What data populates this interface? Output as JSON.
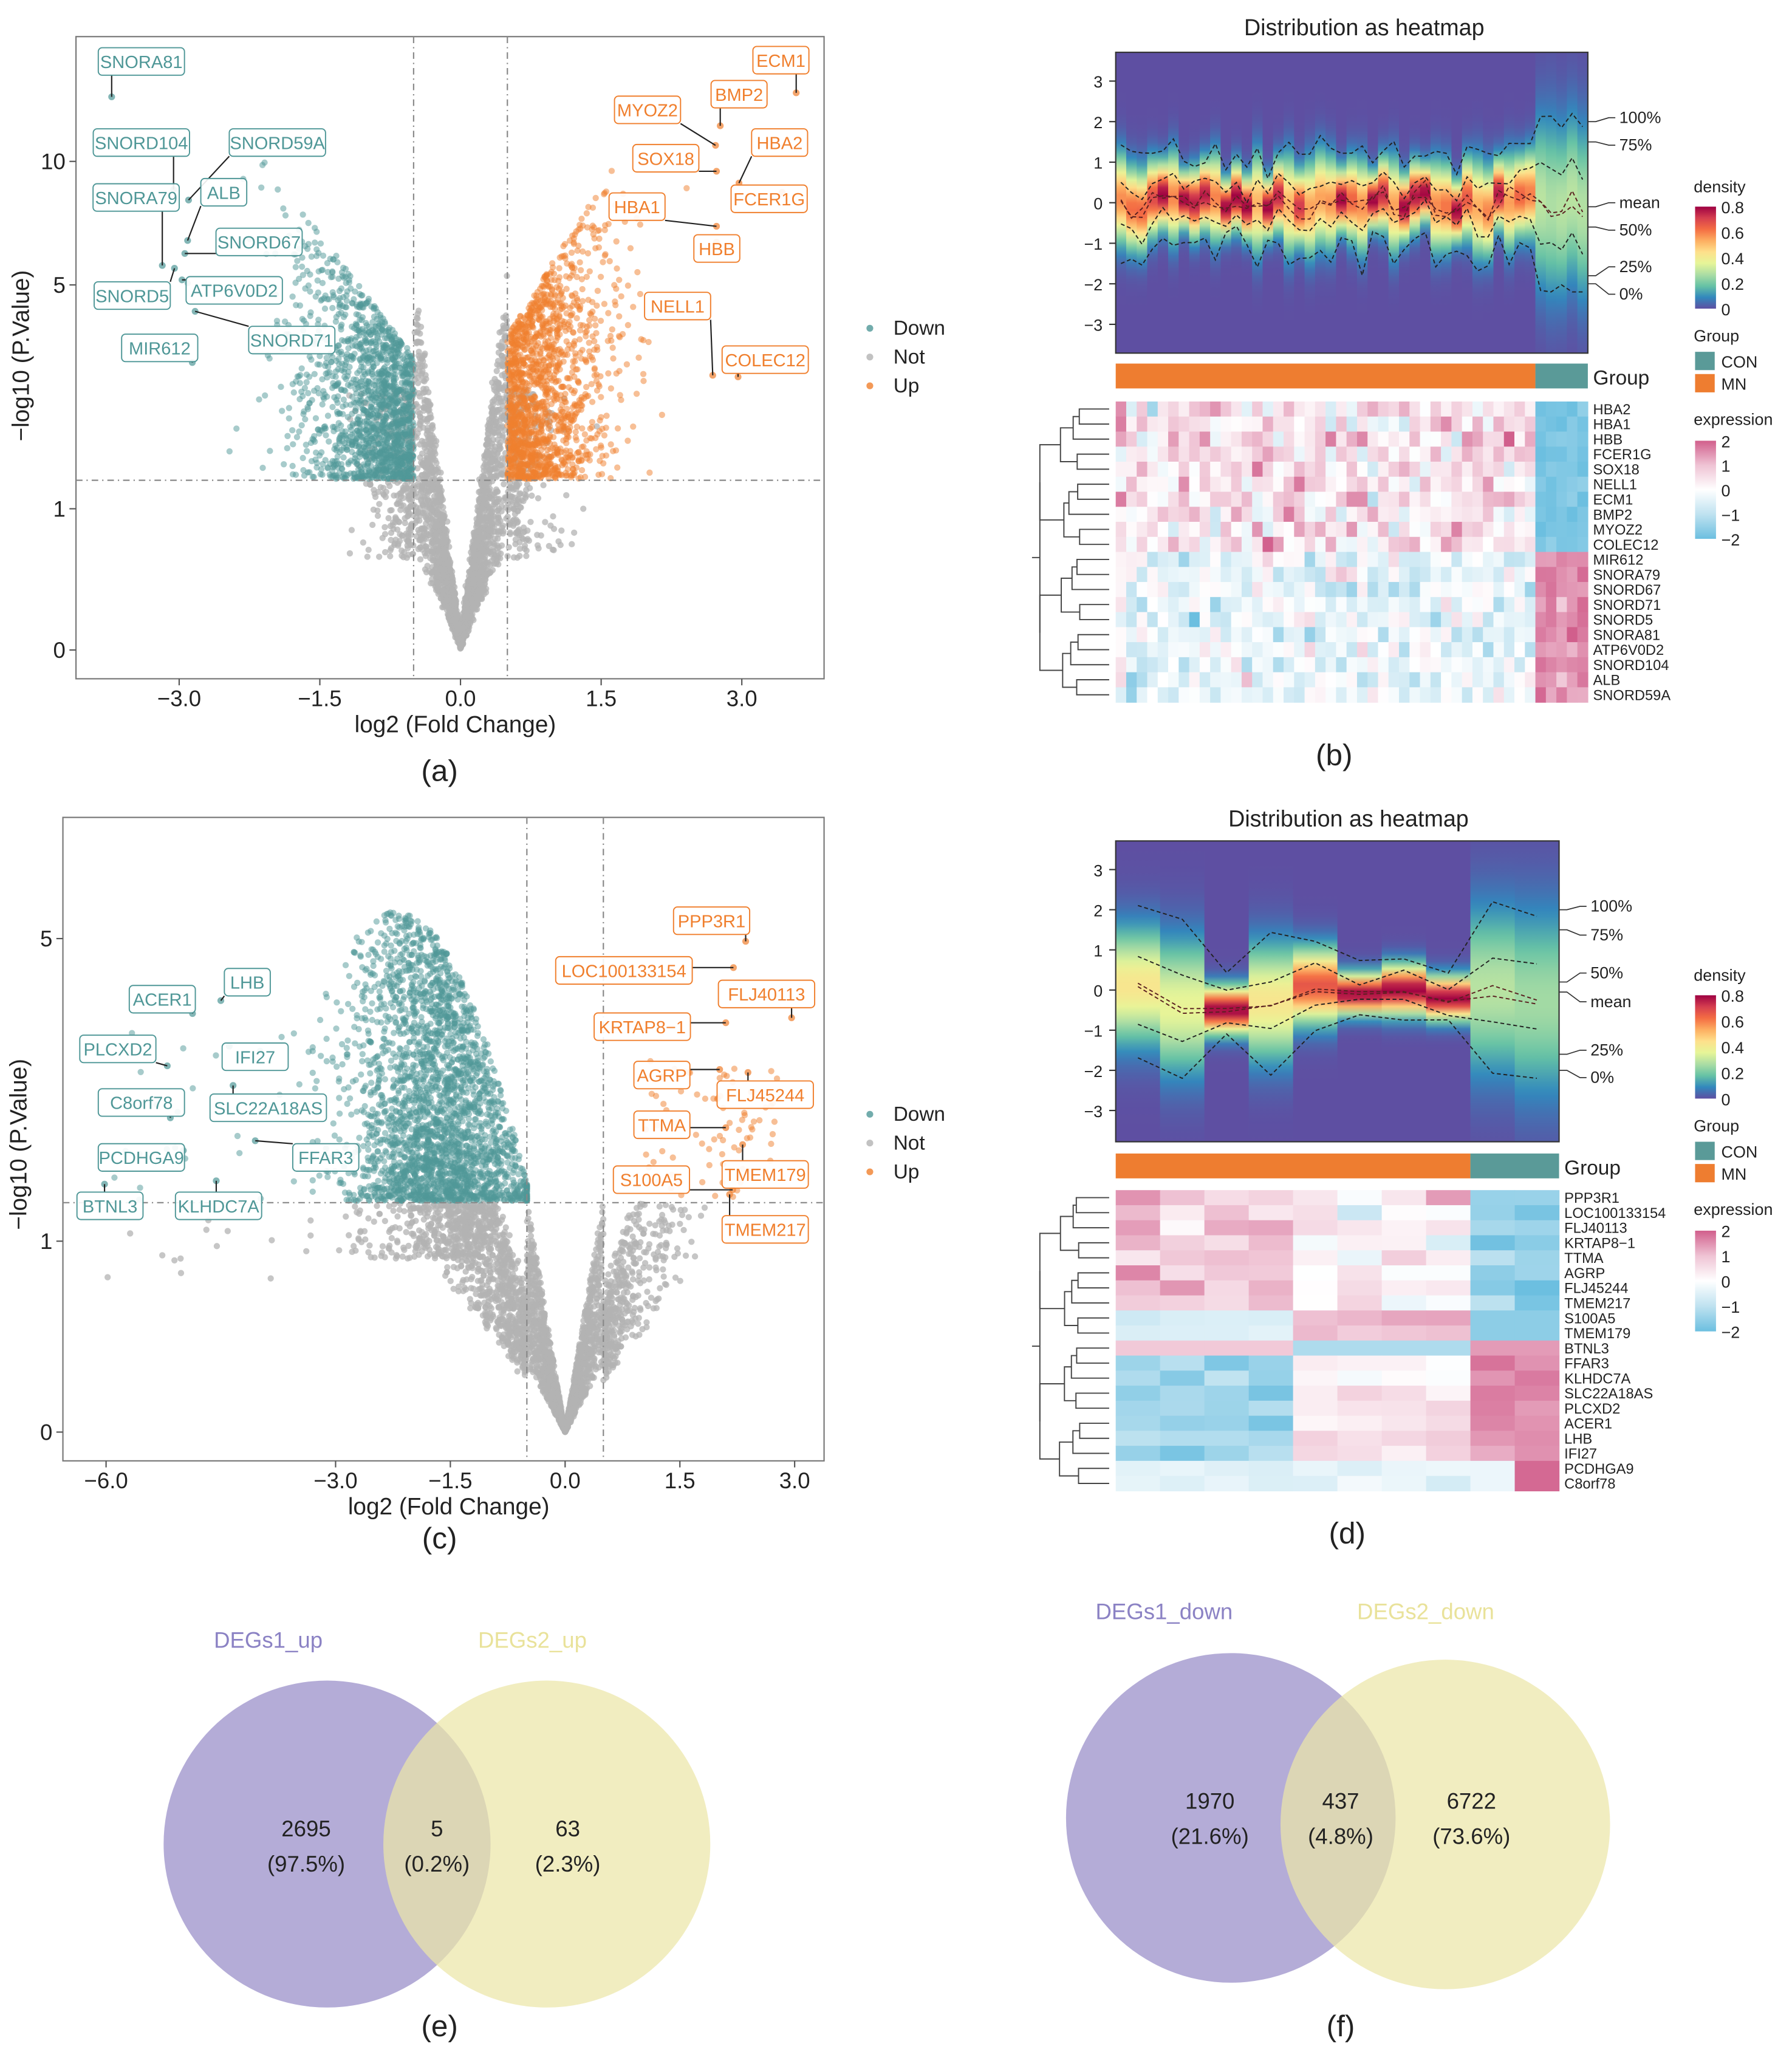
{
  "panel_labels": {
    "a": "(a)",
    "b": "(b)",
    "c": "(c)",
    "d": "(d)",
    "e": "(e)",
    "f": "(f)"
  },
  "colors": {
    "down": "#4f9797",
    "not": "#b3b3b3",
    "up": "#f07f2d",
    "con": "#5a9a98",
    "mn": "#ee7d30",
    "venn_set1": "#9f95cc",
    "venn_set2": "#ece6a8",
    "venn_set1_label": "#8b82c4",
    "venn_set2_label": "#e9e29a"
  },
  "chart_data": [
    {
      "id": "a",
      "type": "scatter",
      "xlabel": "log2 (Fold Change)",
      "ylabel": "−log10 (P.Value)",
      "xticks": [
        {
          "v": -3,
          "label": "−3.0"
        },
        {
          "v": -1.5,
          "label": "−1.5"
        },
        {
          "v": 0,
          "label": "0.0"
        },
        {
          "v": 1.5,
          "label": "1.5"
        },
        {
          "v": 3,
          "label": "3.0"
        }
      ],
      "yticks": [
        {
          "v": 0,
          "label": "0"
        },
        {
          "v": 1,
          "label": "1"
        },
        {
          "v": 5,
          "label": "5"
        },
        {
          "v": 10,
          "label": "10"
        }
      ],
      "y_scale": "log1p",
      "thresholds": {
        "log2fc": 0.5,
        "neglog10p": 1.3
      },
      "legend": [
        "Down",
        "Not",
        "Up"
      ],
      "cloud_counts": {
        "down": 1500,
        "not": 2600,
        "up": 1500
      },
      "labeled": [
        {
          "gene": "SNORA81",
          "x": -3.72,
          "y": 14.1,
          "group": "down"
        },
        {
          "gene": "SNORD104",
          "x": -3.06,
          "y": 8.58,
          "group": "down"
        },
        {
          "gene": "SNORD59A",
          "x": -2.9,
          "y": 8.1,
          "group": "down"
        },
        {
          "gene": "SNORA79",
          "x": -3.18,
          "y": 5.6,
          "group": "down"
        },
        {
          "gene": "ALB",
          "x": -2.91,
          "y": 6.46,
          "group": "down"
        },
        {
          "gene": "SNORD67",
          "x": -2.94,
          "y": 6.0,
          "group": "down"
        },
        {
          "gene": "SNORD5",
          "x": -3.05,
          "y": 5.51,
          "group": "down"
        },
        {
          "gene": "ATP6V0D2",
          "x": -2.97,
          "y": 5.15,
          "group": "down"
        },
        {
          "gene": "SNORD71",
          "x": -2.83,
          "y": 4.27,
          "group": "down"
        },
        {
          "gene": "MIR612",
          "x": -2.86,
          "y": 3.1,
          "group": "down"
        },
        {
          "gene": "ECM1",
          "x": 3.58,
          "y": 14.4,
          "group": "up"
        },
        {
          "gene": "BMP2",
          "x": 2.77,
          "y": 12.1,
          "group": "up"
        },
        {
          "gene": "MYOZ2",
          "x": 2.72,
          "y": 10.9,
          "group": "up"
        },
        {
          "gene": "HBA2",
          "x": 2.97,
          "y": 8.89,
          "group": "up"
        },
        {
          "gene": "SOX18",
          "x": 2.73,
          "y": 9.48,
          "group": "up"
        },
        {
          "gene": "FCER1G",
          "x": 3.43,
          "y": 8.45,
          "group": "up"
        },
        {
          "gene": "HBA1",
          "x": 2.73,
          "y": 7.0,
          "group": "up"
        },
        {
          "gene": "HBB",
          "x": 2.73,
          "y": 6.4,
          "group": "up"
        },
        {
          "gene": "NELL1",
          "x": 2.69,
          "y": 2.85,
          "group": "up"
        },
        {
          "gene": "COLEC12",
          "x": 2.96,
          "y": 2.82,
          "group": "up"
        }
      ]
    },
    {
      "id": "b",
      "type": "heatmap",
      "title": "Distribution as heatmap",
      "density_yticks": [
        {
          "v": 3,
          "label": "3"
        },
        {
          "v": 2,
          "label": "2"
        },
        {
          "v": 1,
          "label": "1"
        },
        {
          "v": 0,
          "label": "0"
        },
        {
          "v": -1,
          "label": "−1"
        },
        {
          "v": -2,
          "label": "−2"
        },
        {
          "v": -3,
          "label": "−3"
        }
      ],
      "quantile_labels": [
        "100%",
        "75%",
        "mean",
        "50%",
        "25%",
        "0%"
      ],
      "group_label": "Group",
      "groups": [
        {
          "name": "MN",
          "n": 40
        },
        {
          "name": "CON",
          "n": 5
        }
      ],
      "genes_up": [
        "HBA2",
        "HBA1",
        "HBB",
        "FCER1G",
        "SOX18",
        "NELL1",
        "ECM1",
        "BMP2",
        "MYOZ2",
        "COLEC12"
      ],
      "genes_down": [
        "MIR612",
        "SNORA79",
        "SNORD67",
        "SNORD71",
        "SNORD5",
        "SNORA81",
        "ATP6V0D2",
        "SNORD104",
        "ALB",
        "SNORD59A"
      ],
      "legend": {
        "density_title": "density",
        "density_ticks": [
          "0.8",
          "0.6",
          "0.4",
          "0.2",
          "0"
        ],
        "group_title": "Group",
        "group_items": [
          "CON",
          "MN"
        ],
        "expression_title": "expression",
        "expression_ticks": [
          "2",
          "1",
          "0",
          "−1",
          "−2"
        ]
      }
    },
    {
      "id": "c",
      "type": "scatter",
      "xlabel": "log2 (Fold Change)",
      "ylabel": "−log10 (P.Value)",
      "xticks": [
        {
          "v": -6,
          "label": "−6.0"
        },
        {
          "v": -3,
          "label": "−3.0"
        },
        {
          "v": -1.5,
          "label": "−1.5"
        },
        {
          "v": 0,
          "label": "0.0"
        },
        {
          "v": 1.5,
          "label": "1.5"
        },
        {
          "v": 3,
          "label": "3.0"
        }
      ],
      "yticks": [
        {
          "v": 0,
          "label": "0"
        },
        {
          "v": 1,
          "label": "1"
        },
        {
          "v": 5,
          "label": "5"
        }
      ],
      "y_scale": "log1p",
      "thresholds": {
        "log2fc": 0.5,
        "neglog10p": 1.3
      },
      "legend": [
        "Down",
        "Not",
        "Up"
      ],
      "cloud_counts": {
        "down": 2600,
        "not": 2800,
        "up": 80
      },
      "labeled": [
        {
          "gene": "PPP3R1",
          "x": 2.36,
          "y": 4.94,
          "group": "up"
        },
        {
          "gene": "LOC100133154",
          "x": 2.2,
          "y": 4.4,
          "group": "up"
        },
        {
          "gene": "FLJ40113",
          "x": 2.96,
          "y": 3.5,
          "group": "up"
        },
        {
          "gene": "KRTAP8−1",
          "x": 2.1,
          "y": 3.42,
          "group": "up"
        },
        {
          "gene": "AGRP",
          "x": 2.02,
          "y": 2.73,
          "group": "up"
        },
        {
          "gene": "FLJ45244",
          "x": 2.39,
          "y": 2.69,
          "group": "up"
        },
        {
          "gene": "TTMA",
          "x": 2.1,
          "y": 2.02,
          "group": "up"
        },
        {
          "gene": "TMEM179",
          "x": 2.32,
          "y": 1.84,
          "group": "up"
        },
        {
          "gene": "S100A5",
          "x": 2.19,
          "y": 1.41,
          "group": "up"
        },
        {
          "gene": "TMEM217",
          "x": 2.15,
          "y": 1.37,
          "group": "up"
        },
        {
          "gene": "ACER1",
          "x": -4.87,
          "y": 3.57,
          "group": "down"
        },
        {
          "gene": "LHB",
          "x": -4.5,
          "y": 3.79,
          "group": "down"
        },
        {
          "gene": "PLCXD2",
          "x": -5.2,
          "y": 2.78,
          "group": "down"
        },
        {
          "gene": "IFI27",
          "x": -4.39,
          "y": 3.06,
          "group": "down"
        },
        {
          "gene": "C8orf78",
          "x": -5.16,
          "y": 2.13,
          "group": "down"
        },
        {
          "gene": "SLC22A18AS",
          "x": -4.34,
          "y": 2.52,
          "group": "down"
        },
        {
          "gene": "PCDHGA9",
          "x": -4.99,
          "y": 1.78,
          "group": "down"
        },
        {
          "gene": "FFAR3",
          "x": -4.05,
          "y": 1.88,
          "group": "down"
        },
        {
          "gene": "BTNL3",
          "x": -6.02,
          "y": 1.46,
          "group": "down"
        },
        {
          "gene": "KLHDC7A",
          "x": -4.56,
          "y": 1.49,
          "group": "down"
        }
      ]
    },
    {
      "id": "d",
      "type": "heatmap",
      "title": "Distribution as heatmap",
      "density_yticks": [
        {
          "v": 3,
          "label": "3"
        },
        {
          "v": 2,
          "label": "2"
        },
        {
          "v": 1,
          "label": "1"
        },
        {
          "v": 0,
          "label": "0"
        },
        {
          "v": -1,
          "label": "−1"
        },
        {
          "v": -2,
          "label": "−2"
        },
        {
          "v": -3,
          "label": "−3"
        }
      ],
      "quantile_labels": [
        "100%",
        "75%",
        "50%",
        "mean",
        "25%",
        "0%"
      ],
      "group_label": "Group",
      "groups": [
        {
          "name": "MN",
          "n": 8
        },
        {
          "name": "CON",
          "n": 2
        }
      ],
      "genes_up": [
        "PPP3R1",
        "LOC100133154",
        "FLJ40113",
        "KRTAP8−1",
        "TTMA",
        "AGRP",
        "FLJ45244",
        "TMEM217",
        "S100A5",
        "TMEM179"
      ],
      "genes_down": [
        "BTNL3",
        "FFAR3",
        "KLHDC7A",
        "SLC22A18AS",
        "PLCXD2",
        "ACER1",
        "LHB",
        "IFI27",
        "PCDHGA9",
        "C8orf78"
      ],
      "legend": {
        "density_title": "density",
        "density_ticks": [
          "0.8",
          "0.6",
          "0.4",
          "0.2",
          "0"
        ],
        "group_title": "Group",
        "group_items": [
          "CON",
          "MN"
        ],
        "expression_title": "expression",
        "expression_ticks": [
          "2",
          "1",
          "0",
          "−1",
          "−2"
        ]
      }
    },
    {
      "id": "e",
      "type": "venn",
      "sets": [
        "DEGs1_up",
        "DEGs2_up"
      ],
      "regions": [
        {
          "region": "DEGs1_up only",
          "count": 2695,
          "count_label": "2695",
          "pct_label": "(97.5%)"
        },
        {
          "region": "both",
          "count": 5,
          "count_label": "5",
          "pct_label": "(0.2%)"
        },
        {
          "region": "DEGs2_up only",
          "count": 63,
          "count_label": "63",
          "pct_label": "(2.3%)"
        }
      ]
    },
    {
      "id": "f",
      "type": "venn",
      "sets": [
        "DEGs1_down",
        "DEGs2_down"
      ],
      "regions": [
        {
          "region": "DEGs1_down only",
          "count": 1970,
          "count_label": "1970",
          "pct_label": "(21.6%)"
        },
        {
          "region": "both",
          "count": 437,
          "count_label": "437",
          "pct_label": "(4.8%)"
        },
        {
          "region": "DEGs2_down only",
          "count": 6722,
          "count_label": "6722",
          "pct_label": "(73.6%)"
        }
      ]
    }
  ]
}
